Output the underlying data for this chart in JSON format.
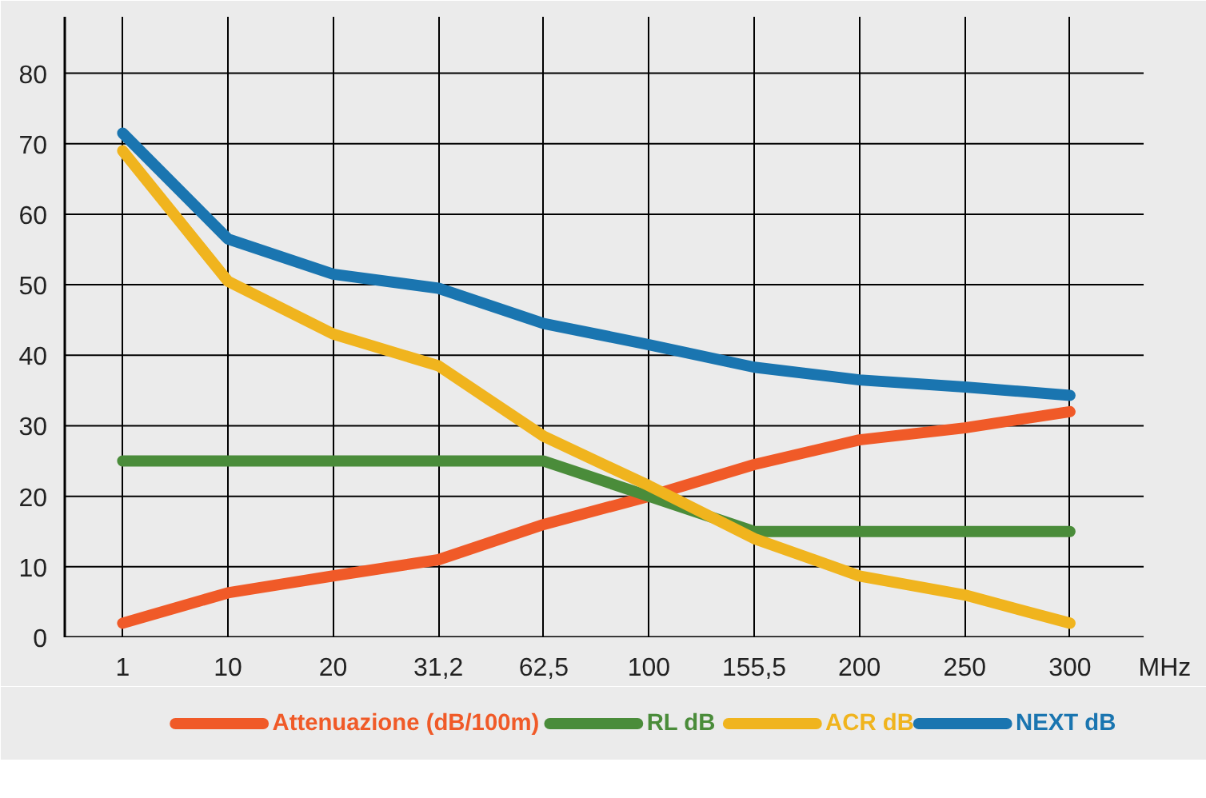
{
  "chart_data": {
    "type": "line",
    "xlabel": "MHz",
    "categories": [
      "1",
      "10",
      "20",
      "31,2",
      "62,5",
      "100",
      "155,5",
      "200",
      "250",
      "300"
    ],
    "ylim": [
      0,
      88
    ],
    "yticks": [
      0,
      10,
      20,
      30,
      40,
      50,
      60,
      70,
      80
    ],
    "grid": true,
    "legend": "bottom",
    "marker": "none",
    "line_style": "solid",
    "series": [
      {
        "name": "Attenuazione (dB/100m)",
        "color": "#f05a28",
        "values": [
          2,
          6.3,
          8.7,
          11,
          16,
          20,
          24.5,
          28,
          29.7,
          32
        ]
      },
      {
        "name": "RL dB",
        "color": "#4a8c3a",
        "values": [
          25,
          25,
          25,
          25,
          25,
          20,
          15,
          15,
          15,
          15
        ]
      },
      {
        "name": "ACR dB",
        "color": "#f0b41e",
        "values": [
          69,
          50.5,
          43,
          38.5,
          28.5,
          21.5,
          14,
          8.7,
          6,
          2
        ]
      },
      {
        "name": "NEXT dB",
        "color": "#1a75b0",
        "values": [
          71.5,
          56.5,
          51.5,
          49.5,
          44.5,
          41.5,
          38.3,
          36.5,
          35.5,
          34.3
        ]
      }
    ]
  }
}
